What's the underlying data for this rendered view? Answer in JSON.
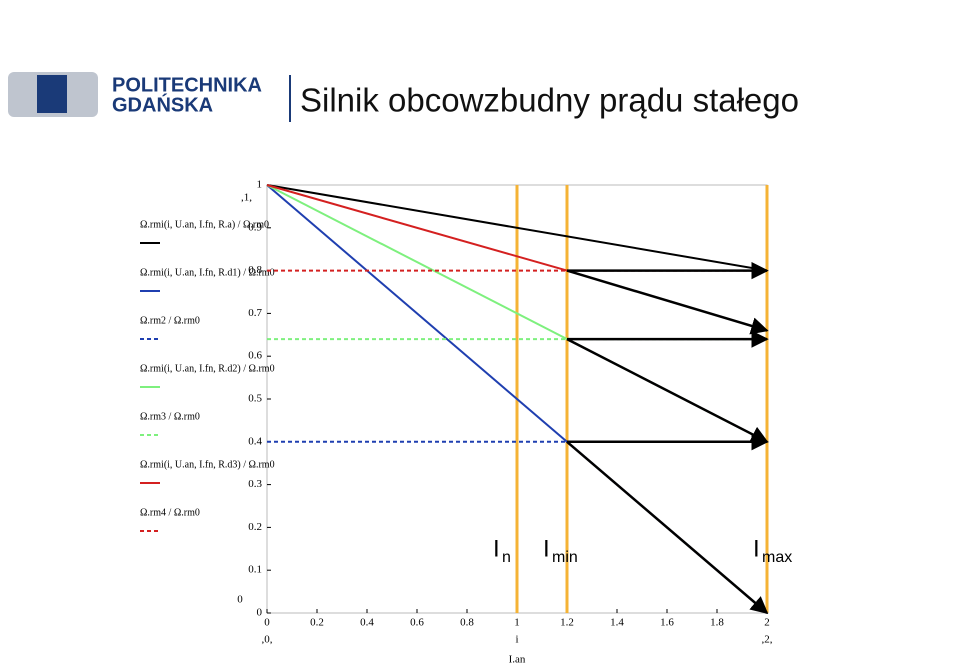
{
  "header": {
    "logo_line1": "POLITECHNIKA",
    "logo_line2": "GDAŃSKA",
    "title": "Silnik obcowzbudny prądu stałego"
  },
  "chart_data": {
    "type": "line",
    "xlim": [
      0,
      2
    ],
    "ylim": [
      0,
      1
    ],
    "xticks": [
      0,
      0.2,
      0.4,
      0.6,
      0.8,
      1,
      1.2,
      1.4,
      1.6,
      1.8,
      2
    ],
    "yticks": [
      0,
      0.1,
      0.2,
      0.3,
      0.4,
      0.5,
      0.6,
      0.7,
      0.8,
      0.9,
      1
    ],
    "x_label": "i",
    "x_label2": "I.an",
    "x_limit_labels": [
      ",0,",
      ",2,"
    ],
    "y_limit_labels": [
      ",1,",
      "0"
    ],
    "series": [
      {
        "name": "Ω.rmi(i, U.an, I.fn, R.a) / Ω.rm0",
        "color": "#000000",
        "dash": "solid",
        "x": [
          0,
          2
        ],
        "y": [
          1,
          0.8
        ]
      },
      {
        "name": "Ω.rmi(i, U.an, I.fn, R.d1) / Ω.rm0",
        "color": "#1f3fb0",
        "dash": "solid",
        "x": [
          0,
          2
        ],
        "y": [
          1,
          0
        ]
      },
      {
        "name": "Ω.rm2 / Ω.rm0",
        "color": "#1f3fb0",
        "dash": "dotted",
        "x": [
          0,
          2
        ],
        "y": [
          0.4,
          0.4
        ]
      },
      {
        "name": "Ω.rmi(i, U.an, I.fn, R.d2) / Ω.rm0",
        "color": "#7ef07e",
        "dash": "solid",
        "x": [
          0,
          2
        ],
        "y": [
          1,
          0.4
        ]
      },
      {
        "name": "Ω.rm3 / Ω.rm0",
        "color": "#7ef07e",
        "dash": "dotted",
        "x": [
          0,
          2
        ],
        "y": [
          0.64,
          0.64
        ]
      },
      {
        "name": "Ω.rmi(i, U.an, I.fn, R.d3) / Ω.rm0",
        "color": "#d42020",
        "dash": "solid",
        "x": [
          0,
          1.2
        ],
        "y": [
          1,
          0.8
        ]
      },
      {
        "name": "Ω.rm4 / Ω.rm0",
        "color": "#d42020",
        "dash": "dotted",
        "x": [
          0,
          2
        ],
        "y": [
          0.8,
          0.8
        ]
      }
    ],
    "arrows": [
      {
        "x": [
          1.2,
          2
        ],
        "y": [
          0.8,
          0.8
        ]
      },
      {
        "x": [
          1.2,
          2
        ],
        "y": [
          0.8,
          0.66
        ]
      },
      {
        "x": [
          1.2,
          2
        ],
        "y": [
          0.64,
          0.64
        ]
      },
      {
        "x": [
          1.2,
          2
        ],
        "y": [
          0.64,
          0.4
        ]
      },
      {
        "x": [
          1.2,
          2
        ],
        "y": [
          0.4,
          0.4
        ]
      },
      {
        "x": [
          1.2,
          2
        ],
        "y": [
          0.4,
          0
        ]
      }
    ],
    "arrow_color": "#000000",
    "markers": [
      {
        "x": 1,
        "label": "I",
        "sub": "n"
      },
      {
        "x": 1.2,
        "label": "I",
        "sub": "min"
      },
      {
        "x": 2,
        "label": "I",
        "sub": "max"
      }
    ],
    "marker_color": "#f5b335"
  }
}
